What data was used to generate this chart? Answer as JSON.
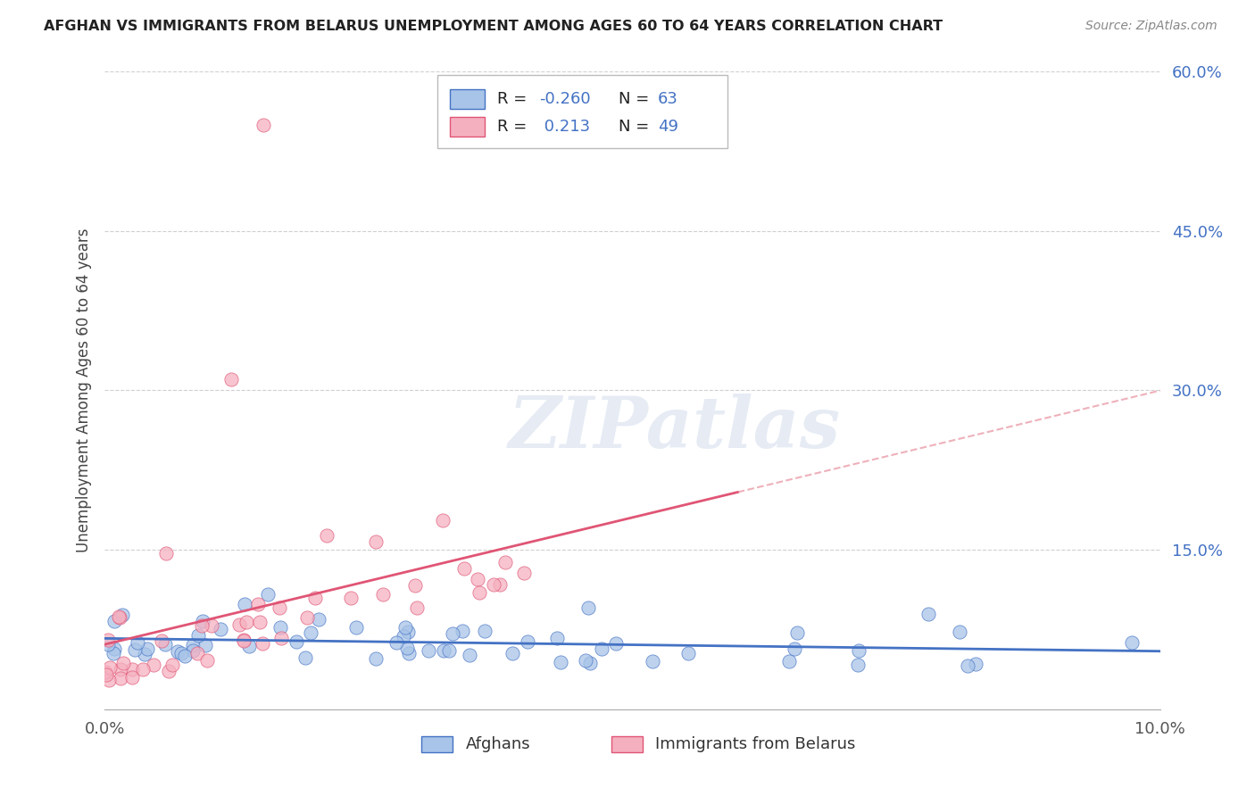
{
  "title": "AFGHAN VS IMMIGRANTS FROM BELARUS UNEMPLOYMENT AMONG AGES 60 TO 64 YEARS CORRELATION CHART",
  "source": "Source: ZipAtlas.com",
  "ylabel": "Unemployment Among Ages 60 to 64 years",
  "xlim": [
    0.0,
    0.1
  ],
  "ylim": [
    0.0,
    0.6
  ],
  "yticks_right": [
    0.15,
    0.3,
    0.45,
    0.6
  ],
  "ytick_labels_right": [
    "15.0%",
    "30.0%",
    "45.0%",
    "60.0%"
  ],
  "xtick_labels": [
    "0.0%",
    "10.0%"
  ],
  "blue_color": "#a8c4e8",
  "pink_color": "#f5b0c0",
  "blue_line_color": "#4472c4",
  "pink_line_color": "#e05575",
  "pink_dash_color": "#e8909f",
  "legend_R_blue": "-0.260",
  "legend_N_blue": "63",
  "legend_R_pink": "0.213",
  "legend_N_pink": "49",
  "label_afghans": "Afghans",
  "label_belarus": "Immigrants from Belarus",
  "watermark": "ZIPatlas",
  "accent_color": "#4472c4",
  "background_color": "#ffffff",
  "grid_color": "#d0d0d0",
  "title_color": "#222222",
  "source_color": "#888888"
}
